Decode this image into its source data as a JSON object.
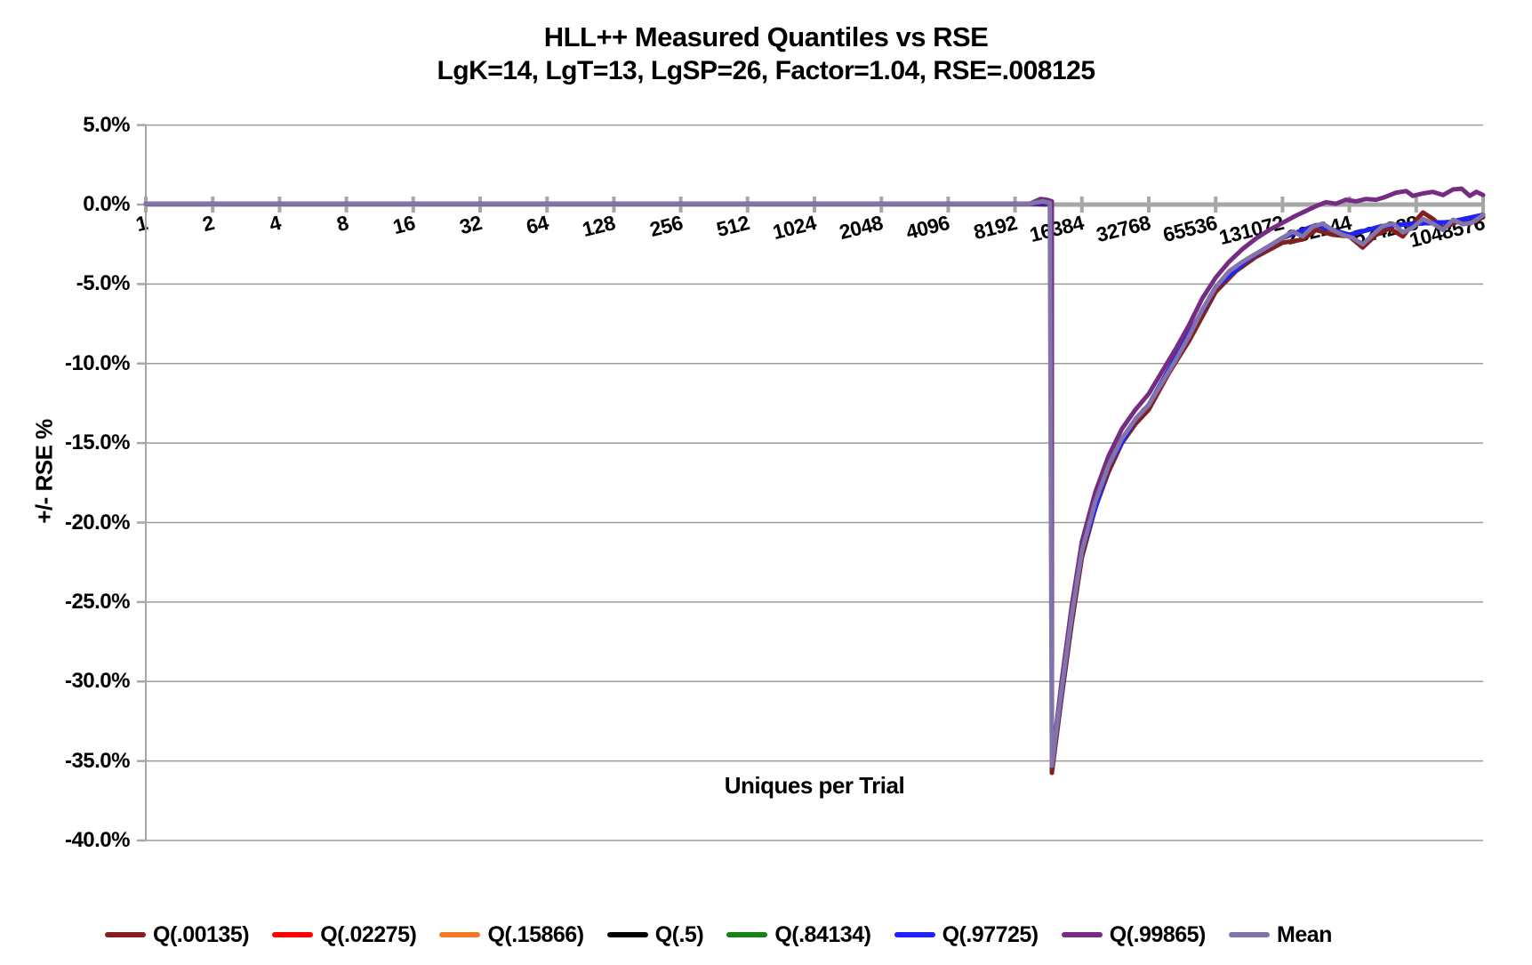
{
  "chart_data": {
    "type": "line",
    "title": "HLL++ Measured Quantiles vs RSE",
    "subtitle": "LgK=14, LgT=13, LgSP=26, Factor=1.04, RSE=.008125",
    "xlabel": "Uniques per Trial",
    "ylabel": "+/-  RSE %",
    "x_scale": "log2",
    "grid": true,
    "legend_position": "bottom",
    "axis_color": "#A6A6A6",
    "grid_color": "#9B9B9B",
    "text_color": "#000000",
    "ylim_pct": [
      -40,
      5
    ],
    "y_ticks": [
      {
        "label": "5.0%",
        "pct": 5
      },
      {
        "label": "0.0%",
        "pct": 0
      },
      {
        "label": "-5.0%",
        "pct": -5
      },
      {
        "label": "-10.0%",
        "pct": -10
      },
      {
        "label": "-15.0%",
        "pct": -15
      },
      {
        "label": "-20.0%",
        "pct": -20
      },
      {
        "label": "-25.0%",
        "pct": -25
      },
      {
        "label": "-30.0%",
        "pct": -30
      },
      {
        "label": "-35.0%",
        "pct": -35
      },
      {
        "label": "-40.0%",
        "pct": -40
      }
    ],
    "x_ticks": [
      {
        "label": "1",
        "lg": 0
      },
      {
        "label": "2",
        "lg": 1
      },
      {
        "label": "4",
        "lg": 2
      },
      {
        "label": "8",
        "lg": 3
      },
      {
        "label": "16",
        "lg": 4
      },
      {
        "label": "32",
        "lg": 5
      },
      {
        "label": "64",
        "lg": 6
      },
      {
        "label": "128",
        "lg": 7
      },
      {
        "label": "256",
        "lg": 8
      },
      {
        "label": "512",
        "lg": 9
      },
      {
        "label": "1024",
        "lg": 10
      },
      {
        "label": "2048",
        "lg": 11
      },
      {
        "label": "4096",
        "lg": 12
      },
      {
        "label": "8192",
        "lg": 13
      },
      {
        "label": "16384",
        "lg": 14
      },
      {
        "label": "32768",
        "lg": 15
      },
      {
        "label": "65536",
        "lg": 16
      },
      {
        "label": "131072",
        "lg": 17
      },
      {
        "label": "262144",
        "lg": 18
      },
      {
        "label": "524288",
        "lg": 19
      },
      {
        "label": "1048576",
        "lg": 20
      }
    ],
    "series": [
      {
        "name": "Q(.00135)",
        "color": "#841F1F",
        "points_log2x_pct": [
          [
            0,
            0.05
          ],
          [
            2,
            0.05
          ],
          [
            4,
            0.05
          ],
          [
            6,
            0.05
          ],
          [
            8,
            0.05
          ],
          [
            10,
            0.05
          ],
          [
            12,
            0.05
          ],
          [
            13.2,
            0.05
          ],
          [
            13.45,
            0.0
          ],
          [
            13.55,
            0.05
          ],
          [
            13.55,
            -35.75
          ],
          [
            13.7,
            -30.9
          ],
          [
            13.85,
            -26.3
          ],
          [
            14,
            -22.2
          ],
          [
            14.2,
            -19.1
          ],
          [
            14.4,
            -16.8
          ],
          [
            14.6,
            -15.0
          ],
          [
            14.8,
            -13.8
          ],
          [
            15,
            -12.9
          ],
          [
            15.3,
            -10.6
          ],
          [
            15.6,
            -8.6
          ],
          [
            16,
            -5.5
          ],
          [
            16.3,
            -4.2
          ],
          [
            16.6,
            -3.3
          ],
          [
            17,
            -2.4
          ],
          [
            17.3,
            -2.2
          ],
          [
            17.5,
            -1.6
          ],
          [
            17.75,
            -1.9
          ],
          [
            18,
            -2.0
          ],
          [
            18.2,
            -2.7
          ],
          [
            18.4,
            -1.9
          ],
          [
            18.6,
            -1.5
          ],
          [
            18.8,
            -2.0
          ],
          [
            18.95,
            -1.2
          ],
          [
            19.1,
            -0.5
          ],
          [
            19.25,
            -0.9
          ],
          [
            19.4,
            -1.5
          ],
          [
            19.6,
            -1.1
          ],
          [
            19.8,
            -1.2
          ],
          [
            20,
            -0.8
          ]
        ]
      },
      {
        "name": "Q(.02275)",
        "color": "#FE0000",
        "points_log2x_pct": [
          [
            0,
            0.05
          ],
          [
            2,
            0.05
          ],
          [
            4,
            0.05
          ],
          [
            6,
            0.05
          ],
          [
            8,
            0.05
          ],
          [
            10,
            0.05
          ],
          [
            12,
            0.05
          ],
          [
            13.2,
            0.05
          ],
          [
            13.45,
            0.1
          ],
          [
            13.55,
            0.05
          ],
          [
            13.55,
            -35.3
          ],
          [
            13.85,
            -25.8
          ],
          [
            14,
            -21.8
          ],
          [
            14.4,
            -16.4
          ],
          [
            14.8,
            -13.5
          ],
          [
            15,
            -12.6
          ],
          [
            15.5,
            -8.9
          ],
          [
            16,
            -5.2
          ],
          [
            16.5,
            -3.4
          ],
          [
            17,
            -2.1
          ],
          [
            17.5,
            -1.3
          ],
          [
            18,
            -1.9
          ],
          [
            18.5,
            -1.35
          ],
          [
            19,
            -1.2
          ],
          [
            19.5,
            -1.1
          ],
          [
            20,
            -0.65
          ]
        ]
      },
      {
        "name": "Q(.15866)",
        "color": "#F07D25",
        "points_log2x_pct": [
          [
            0,
            0.05
          ],
          [
            2,
            0.05
          ],
          [
            4,
            0.05
          ],
          [
            6,
            0.05
          ],
          [
            8,
            0.05
          ],
          [
            10,
            0.05
          ],
          [
            12,
            0.05
          ],
          [
            13.2,
            0.05
          ],
          [
            13.45,
            0.1
          ],
          [
            13.55,
            0.05
          ],
          [
            13.55,
            -35.3
          ],
          [
            13.85,
            -25.8
          ],
          [
            14,
            -21.8
          ],
          [
            14.4,
            -16.4
          ],
          [
            14.8,
            -13.5
          ],
          [
            15,
            -12.6
          ],
          [
            15.5,
            -8.9
          ],
          [
            16,
            -5.2
          ],
          [
            16.5,
            -3.4
          ],
          [
            17,
            -2.1
          ],
          [
            17.5,
            -1.3
          ],
          [
            18,
            -1.9
          ],
          [
            18.5,
            -1.35
          ],
          [
            19,
            -1.2
          ],
          [
            19.5,
            -1.1
          ],
          [
            20,
            -0.65
          ]
        ]
      },
      {
        "name": "Q(.5)",
        "color": "#000000",
        "points_log2x_pct": [
          [
            0,
            0.05
          ],
          [
            2,
            0.05
          ],
          [
            4,
            0.05
          ],
          [
            6,
            0.05
          ],
          [
            8,
            0.05
          ],
          [
            10,
            0.05
          ],
          [
            12,
            0.05
          ],
          [
            13.2,
            0.05
          ],
          [
            13.45,
            0.1
          ],
          [
            13.55,
            0.05
          ],
          [
            13.55,
            -35.3
          ],
          [
            13.85,
            -25.8
          ],
          [
            14,
            -21.8
          ],
          [
            14.4,
            -16.4
          ],
          [
            14.8,
            -13.5
          ],
          [
            15,
            -12.6
          ],
          [
            15.5,
            -8.9
          ],
          [
            16,
            -5.2
          ],
          [
            16.5,
            -3.4
          ],
          [
            17,
            -2.1
          ],
          [
            17.5,
            -1.3
          ],
          [
            18,
            -1.9
          ],
          [
            18.5,
            -1.35
          ],
          [
            19,
            -1.2
          ],
          [
            19.5,
            -1.1
          ],
          [
            20,
            -0.65
          ]
        ]
      },
      {
        "name": "Q(.84134)",
        "color": "#168316",
        "points_log2x_pct": [
          [
            0,
            0.05
          ],
          [
            2,
            0.05
          ],
          [
            4,
            0.05
          ],
          [
            6,
            0.05
          ],
          [
            8,
            0.05
          ],
          [
            10,
            0.05
          ],
          [
            12,
            0.05
          ],
          [
            13.2,
            0.05
          ],
          [
            13.45,
            0.1
          ],
          [
            13.55,
            0.05
          ],
          [
            13.55,
            -35.3
          ],
          [
            13.85,
            -25.8
          ],
          [
            14,
            -21.8
          ],
          [
            14.4,
            -16.4
          ],
          [
            14.8,
            -13.5
          ],
          [
            15,
            -12.6
          ],
          [
            15.5,
            -8.9
          ],
          [
            16,
            -5.2
          ],
          [
            16.5,
            -3.4
          ],
          [
            17,
            -2.1
          ],
          [
            17.5,
            -1.3
          ],
          [
            18,
            -1.9
          ],
          [
            18.5,
            -1.35
          ],
          [
            19,
            -1.2
          ],
          [
            19.5,
            -1.1
          ],
          [
            20,
            -0.65
          ]
        ]
      },
      {
        "name": "Q(.97725)",
        "color": "#2020FF",
        "points_log2x_pct": [
          [
            0,
            0.05
          ],
          [
            2,
            0.05
          ],
          [
            4,
            0.05
          ],
          [
            6,
            0.05
          ],
          [
            8,
            0.05
          ],
          [
            10,
            0.05
          ],
          [
            12,
            0.05
          ],
          [
            13.2,
            0.05
          ],
          [
            13.45,
            0.1
          ],
          [
            13.55,
            0.05
          ],
          [
            13.55,
            -35.3
          ],
          [
            13.85,
            -25.8
          ],
          [
            14,
            -21.8
          ],
          [
            14.4,
            -16.4
          ],
          [
            14.8,
            -13.5
          ],
          [
            15,
            -12.6
          ],
          [
            15.5,
            -8.9
          ],
          [
            16,
            -5.2
          ],
          [
            16.5,
            -3.4
          ],
          [
            17,
            -2.1
          ],
          [
            17.5,
            -1.3
          ],
          [
            18,
            -1.9
          ],
          [
            18.5,
            -1.35
          ],
          [
            19,
            -1.2
          ],
          [
            19.5,
            -1.1
          ],
          [
            20,
            -0.65
          ]
        ]
      },
      {
        "name": "Q(.99865)",
        "color": "#752C82",
        "points_log2x_pct": [
          [
            0,
            0.05
          ],
          [
            2,
            0.05
          ],
          [
            4,
            0.05
          ],
          [
            6,
            0.05
          ],
          [
            8,
            0.05
          ],
          [
            10,
            0.05
          ],
          [
            12,
            0.05
          ],
          [
            13.2,
            0.05
          ],
          [
            13.25,
            0.1
          ],
          [
            13.38,
            0.35
          ],
          [
            13.48,
            0.3
          ],
          [
            13.55,
            0.2
          ],
          [
            13.55,
            -35.2
          ],
          [
            13.7,
            -29.9
          ],
          [
            13.85,
            -25.2
          ],
          [
            14,
            -21.2
          ],
          [
            14.2,
            -18.1
          ],
          [
            14.4,
            -15.8
          ],
          [
            14.6,
            -14.1
          ],
          [
            14.8,
            -12.9
          ],
          [
            15,
            -11.9
          ],
          [
            15.2,
            -10.5
          ],
          [
            15.4,
            -9.1
          ],
          [
            15.6,
            -7.6
          ],
          [
            15.8,
            -5.9
          ],
          [
            16,
            -4.6
          ],
          [
            16.2,
            -3.6
          ],
          [
            16.4,
            -2.8
          ],
          [
            16.6,
            -2.15
          ],
          [
            16.8,
            -1.6
          ],
          [
            17,
            -1.15
          ],
          [
            17.2,
            -0.7
          ],
          [
            17.35,
            -0.4
          ],
          [
            17.5,
            -0.1
          ],
          [
            17.65,
            0.15
          ],
          [
            17.8,
            0.05
          ],
          [
            17.95,
            0.3
          ],
          [
            18.1,
            0.2
          ],
          [
            18.25,
            0.35
          ],
          [
            18.4,
            0.3
          ],
          [
            18.55,
            0.5
          ],
          [
            18.7,
            0.75
          ],
          [
            18.85,
            0.85
          ],
          [
            18.95,
            0.55
          ],
          [
            19.1,
            0.7
          ],
          [
            19.25,
            0.8
          ],
          [
            19.4,
            0.6
          ],
          [
            19.55,
            0.95
          ],
          [
            19.68,
            1.0
          ],
          [
            19.8,
            0.55
          ],
          [
            19.9,
            0.8
          ],
          [
            20,
            0.6
          ]
        ]
      },
      {
        "name": "Mean",
        "color": "#8273AA",
        "points_log2x_pct": [
          [
            0,
            0.05
          ],
          [
            2,
            0.05
          ],
          [
            4,
            0.05
          ],
          [
            6,
            0.05
          ],
          [
            8,
            0.05
          ],
          [
            10,
            0.05
          ],
          [
            12,
            0.05
          ],
          [
            13.2,
            0.05
          ],
          [
            13.42,
            0.2
          ],
          [
            13.52,
            0.1
          ],
          [
            13.55,
            -35.3
          ],
          [
            13.7,
            -30.4
          ],
          [
            13.85,
            -25.8
          ],
          [
            14,
            -21.8
          ],
          [
            14.2,
            -18.7
          ],
          [
            14.4,
            -16.4
          ],
          [
            14.6,
            -14.7
          ],
          [
            14.8,
            -13.5
          ],
          [
            15,
            -12.6
          ],
          [
            15.2,
            -11.2
          ],
          [
            15.4,
            -9.8
          ],
          [
            15.6,
            -8.3
          ],
          [
            15.8,
            -6.6
          ],
          [
            16,
            -5.2
          ],
          [
            16.2,
            -4.2
          ],
          [
            16.4,
            -3.6
          ],
          [
            16.6,
            -3.1
          ],
          [
            16.8,
            -2.6
          ],
          [
            17,
            -2.1
          ],
          [
            17.15,
            -1.7
          ],
          [
            17.3,
            -2.0
          ],
          [
            17.45,
            -1.4
          ],
          [
            17.6,
            -1.2
          ],
          [
            17.75,
            -1.6
          ],
          [
            17.9,
            -1.9
          ],
          [
            18.05,
            -2.1
          ],
          [
            18.2,
            -2.5
          ],
          [
            18.35,
            -1.9
          ],
          [
            18.5,
            -1.35
          ],
          [
            18.65,
            -1.2
          ],
          [
            18.8,
            -1.75
          ],
          [
            18.95,
            -1.45
          ],
          [
            19.1,
            -0.9
          ],
          [
            19.25,
            -1.2
          ],
          [
            19.4,
            -1.6
          ],
          [
            19.55,
            -0.95
          ],
          [
            19.7,
            -1.25
          ],
          [
            19.85,
            -1.1
          ],
          [
            20,
            -0.65
          ]
        ]
      }
    ]
  }
}
